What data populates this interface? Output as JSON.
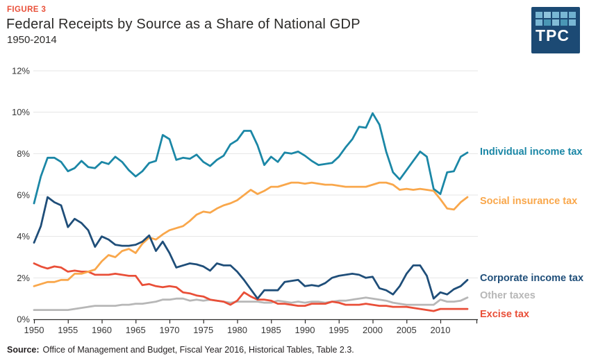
{
  "figure_label": "FIGURE 3",
  "logo_text": "TPC",
  "source_label": "Source:",
  "source_text": "Office of Management and Budget, Fiscal Year 2016, Historical Tables, Table 2.3.",
  "colors": {
    "accent_red": "#e94f38",
    "individual_income_tax": "#1b87a6",
    "social_insurance_tax": "#f9a74b",
    "corporate_income_tax": "#1f4e79",
    "other_taxes": "#b7b7b7",
    "excise_tax": "#e94f38",
    "logo_navy": "#1c4a74"
  },
  "chart_data": {
    "type": "line",
    "title": "Federal Receipts by Source as a Share of National GDP",
    "subtitle": "1950-2014",
    "xlabel": "",
    "ylabel": "",
    "y_unit": "%",
    "x_range": [
      1950,
      2014
    ],
    "ylim": [
      0,
      12
    ],
    "grid": true,
    "legend_position": "right-of-line-ends",
    "x_ticks": [
      1950,
      1955,
      1960,
      1965,
      1970,
      1975,
      1980,
      1985,
      1990,
      1995,
      2000,
      2005,
      2010
    ],
    "y_tick_labels": [
      "0%",
      "2%",
      "4%",
      "6%",
      "8%",
      "10%",
      "12%"
    ],
    "x_start_year": 1950,
    "series": [
      {
        "name": "Individual income tax",
        "color": "#1b87a6",
        "values": [
          5.6,
          6.9,
          7.8,
          7.8,
          7.6,
          7.15,
          7.3,
          7.65,
          7.35,
          7.3,
          7.6,
          7.5,
          7.85,
          7.6,
          7.2,
          6.9,
          7.15,
          7.55,
          7.65,
          8.9,
          8.7,
          7.7,
          7.8,
          7.75,
          7.95,
          7.6,
          7.4,
          7.7,
          7.9,
          8.45,
          8.65,
          9.1,
          9.1,
          8.4,
          7.45,
          7.85,
          7.6,
          8.05,
          8.0,
          8.1,
          7.9,
          7.65,
          7.45,
          7.5,
          7.55,
          7.85,
          8.3,
          8.7,
          9.3,
          9.25,
          9.95,
          9.4,
          8.1,
          7.1,
          6.75,
          7.2,
          7.65,
          8.1,
          7.85,
          6.3,
          6.05,
          7.1,
          7.15,
          7.85,
          8.05
        ]
      },
      {
        "name": "Social insurance tax",
        "color": "#f9a74b",
        "values": [
          1.6,
          1.7,
          1.8,
          1.8,
          1.9,
          1.9,
          2.2,
          2.2,
          2.3,
          2.4,
          2.8,
          3.1,
          3.0,
          3.3,
          3.4,
          3.2,
          3.65,
          3.95,
          3.85,
          4.1,
          4.3,
          4.4,
          4.5,
          4.75,
          5.05,
          5.2,
          5.15,
          5.35,
          5.5,
          5.6,
          5.75,
          6.0,
          6.25,
          6.05,
          6.2,
          6.4,
          6.4,
          6.5,
          6.6,
          6.6,
          6.55,
          6.6,
          6.55,
          6.5,
          6.5,
          6.45,
          6.4,
          6.4,
          6.4,
          6.4,
          6.5,
          6.6,
          6.6,
          6.5,
          6.25,
          6.3,
          6.25,
          6.3,
          6.25,
          6.2,
          5.8,
          5.35,
          5.3,
          5.65,
          5.9
        ]
      },
      {
        "name": "Corporate income tax",
        "color": "#1f4e79",
        "values": [
          3.7,
          4.5,
          5.9,
          5.65,
          5.5,
          4.45,
          4.85,
          4.65,
          4.3,
          3.5,
          4.0,
          3.85,
          3.6,
          3.55,
          3.55,
          3.6,
          3.75,
          4.05,
          3.3,
          3.75,
          3.2,
          2.5,
          2.6,
          2.7,
          2.65,
          2.55,
          2.35,
          2.7,
          2.6,
          2.6,
          2.3,
          1.9,
          1.45,
          1.0,
          1.4,
          1.4,
          1.4,
          1.8,
          1.85,
          1.9,
          1.6,
          1.65,
          1.6,
          1.75,
          2.0,
          2.1,
          2.15,
          2.2,
          2.15,
          2.0,
          2.05,
          1.5,
          1.4,
          1.2,
          1.6,
          2.2,
          2.6,
          2.6,
          2.1,
          1.0,
          1.3,
          1.2,
          1.45,
          1.6,
          1.9
        ]
      },
      {
        "name": "Other taxes",
        "color": "#b7b7b7",
        "values": [
          0.45,
          0.45,
          0.45,
          0.45,
          0.45,
          0.45,
          0.5,
          0.55,
          0.6,
          0.65,
          0.65,
          0.65,
          0.65,
          0.7,
          0.7,
          0.75,
          0.75,
          0.8,
          0.85,
          0.95,
          0.95,
          1.0,
          1.0,
          0.9,
          0.95,
          0.9,
          0.95,
          0.9,
          0.85,
          0.8,
          0.85,
          0.85,
          0.85,
          0.85,
          0.8,
          0.8,
          0.9,
          0.85,
          0.8,
          0.85,
          0.8,
          0.85,
          0.85,
          0.8,
          0.85,
          0.9,
          0.9,
          0.95,
          1.0,
          1.05,
          1.0,
          0.95,
          0.9,
          0.8,
          0.75,
          0.7,
          0.7,
          0.7,
          0.7,
          0.7,
          0.95,
          0.85,
          0.85,
          0.9,
          1.05
        ]
      },
      {
        "name": "Excise tax",
        "color": "#e94f38",
        "values": [
          2.7,
          2.55,
          2.45,
          2.55,
          2.5,
          2.3,
          2.35,
          2.3,
          2.3,
          2.15,
          2.15,
          2.15,
          2.2,
          2.15,
          2.1,
          2.1,
          1.65,
          1.7,
          1.6,
          1.55,
          1.6,
          1.55,
          1.3,
          1.25,
          1.15,
          1.1,
          0.95,
          0.9,
          0.85,
          0.7,
          0.9,
          1.3,
          1.1,
          0.95,
          0.95,
          0.9,
          0.75,
          0.75,
          0.7,
          0.65,
          0.65,
          0.75,
          0.75,
          0.75,
          0.85,
          0.8,
          0.7,
          0.7,
          0.7,
          0.75,
          0.7,
          0.65,
          0.65,
          0.6,
          0.6,
          0.6,
          0.55,
          0.5,
          0.45,
          0.4,
          0.5,
          0.5,
          0.5,
          0.5,
          0.5
        ]
      }
    ]
  }
}
